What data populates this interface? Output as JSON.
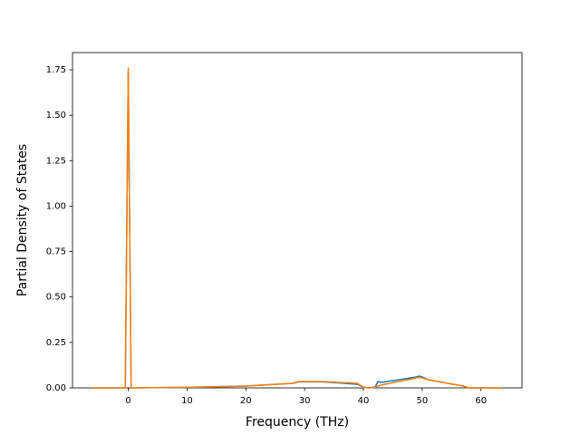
{
  "chart_data": {
    "type": "line",
    "x_label": "Frequency (THz)",
    "y_label": "Partial Density of States",
    "x": [
      -6,
      -0.5,
      0,
      0.5,
      10,
      20,
      28,
      29,
      33,
      39,
      40,
      41,
      42,
      42.5,
      43,
      49,
      49.5,
      50,
      51,
      57,
      58,
      63.5
    ],
    "series": [
      {
        "color": "#1f77b4",
        "values": [
          0,
          0,
          1.74,
          0,
          0.003,
          0.01,
          0.025,
          0.033,
          0.033,
          0.02,
          0.003,
          0,
          0.005,
          0.035,
          0.03,
          0.06,
          0.065,
          0.06,
          0.045,
          0.01,
          0,
          0
        ]
      },
      {
        "color": "#ff7f0e",
        "values": [
          0,
          0,
          1.76,
          0,
          0.003,
          0.01,
          0.025,
          0.035,
          0.035,
          0.025,
          0.003,
          0,
          0.003,
          0.01,
          0.015,
          0.055,
          0.058,
          0.055,
          0.045,
          0.01,
          0,
          0
        ]
      }
    ],
    "xlim": [
      -9.48,
      66.98
    ],
    "ylim": [
      0,
      1.845
    ],
    "xticks": [
      0,
      10,
      20,
      30,
      40,
      50,
      60
    ],
    "yticks": [
      {
        "value": 0,
        "label": "0.00"
      },
      {
        "value": 0.25,
        "label": "0.25"
      },
      {
        "value": 0.5,
        "label": "0.50"
      },
      {
        "value": 0.75,
        "label": "0.75"
      },
      {
        "value": 1,
        "label": "1.00"
      },
      {
        "value": 1.25,
        "label": "1.25"
      },
      {
        "value": 1.5,
        "label": "1.50"
      },
      {
        "value": 1.75,
        "label": "1.75"
      }
    ]
  }
}
